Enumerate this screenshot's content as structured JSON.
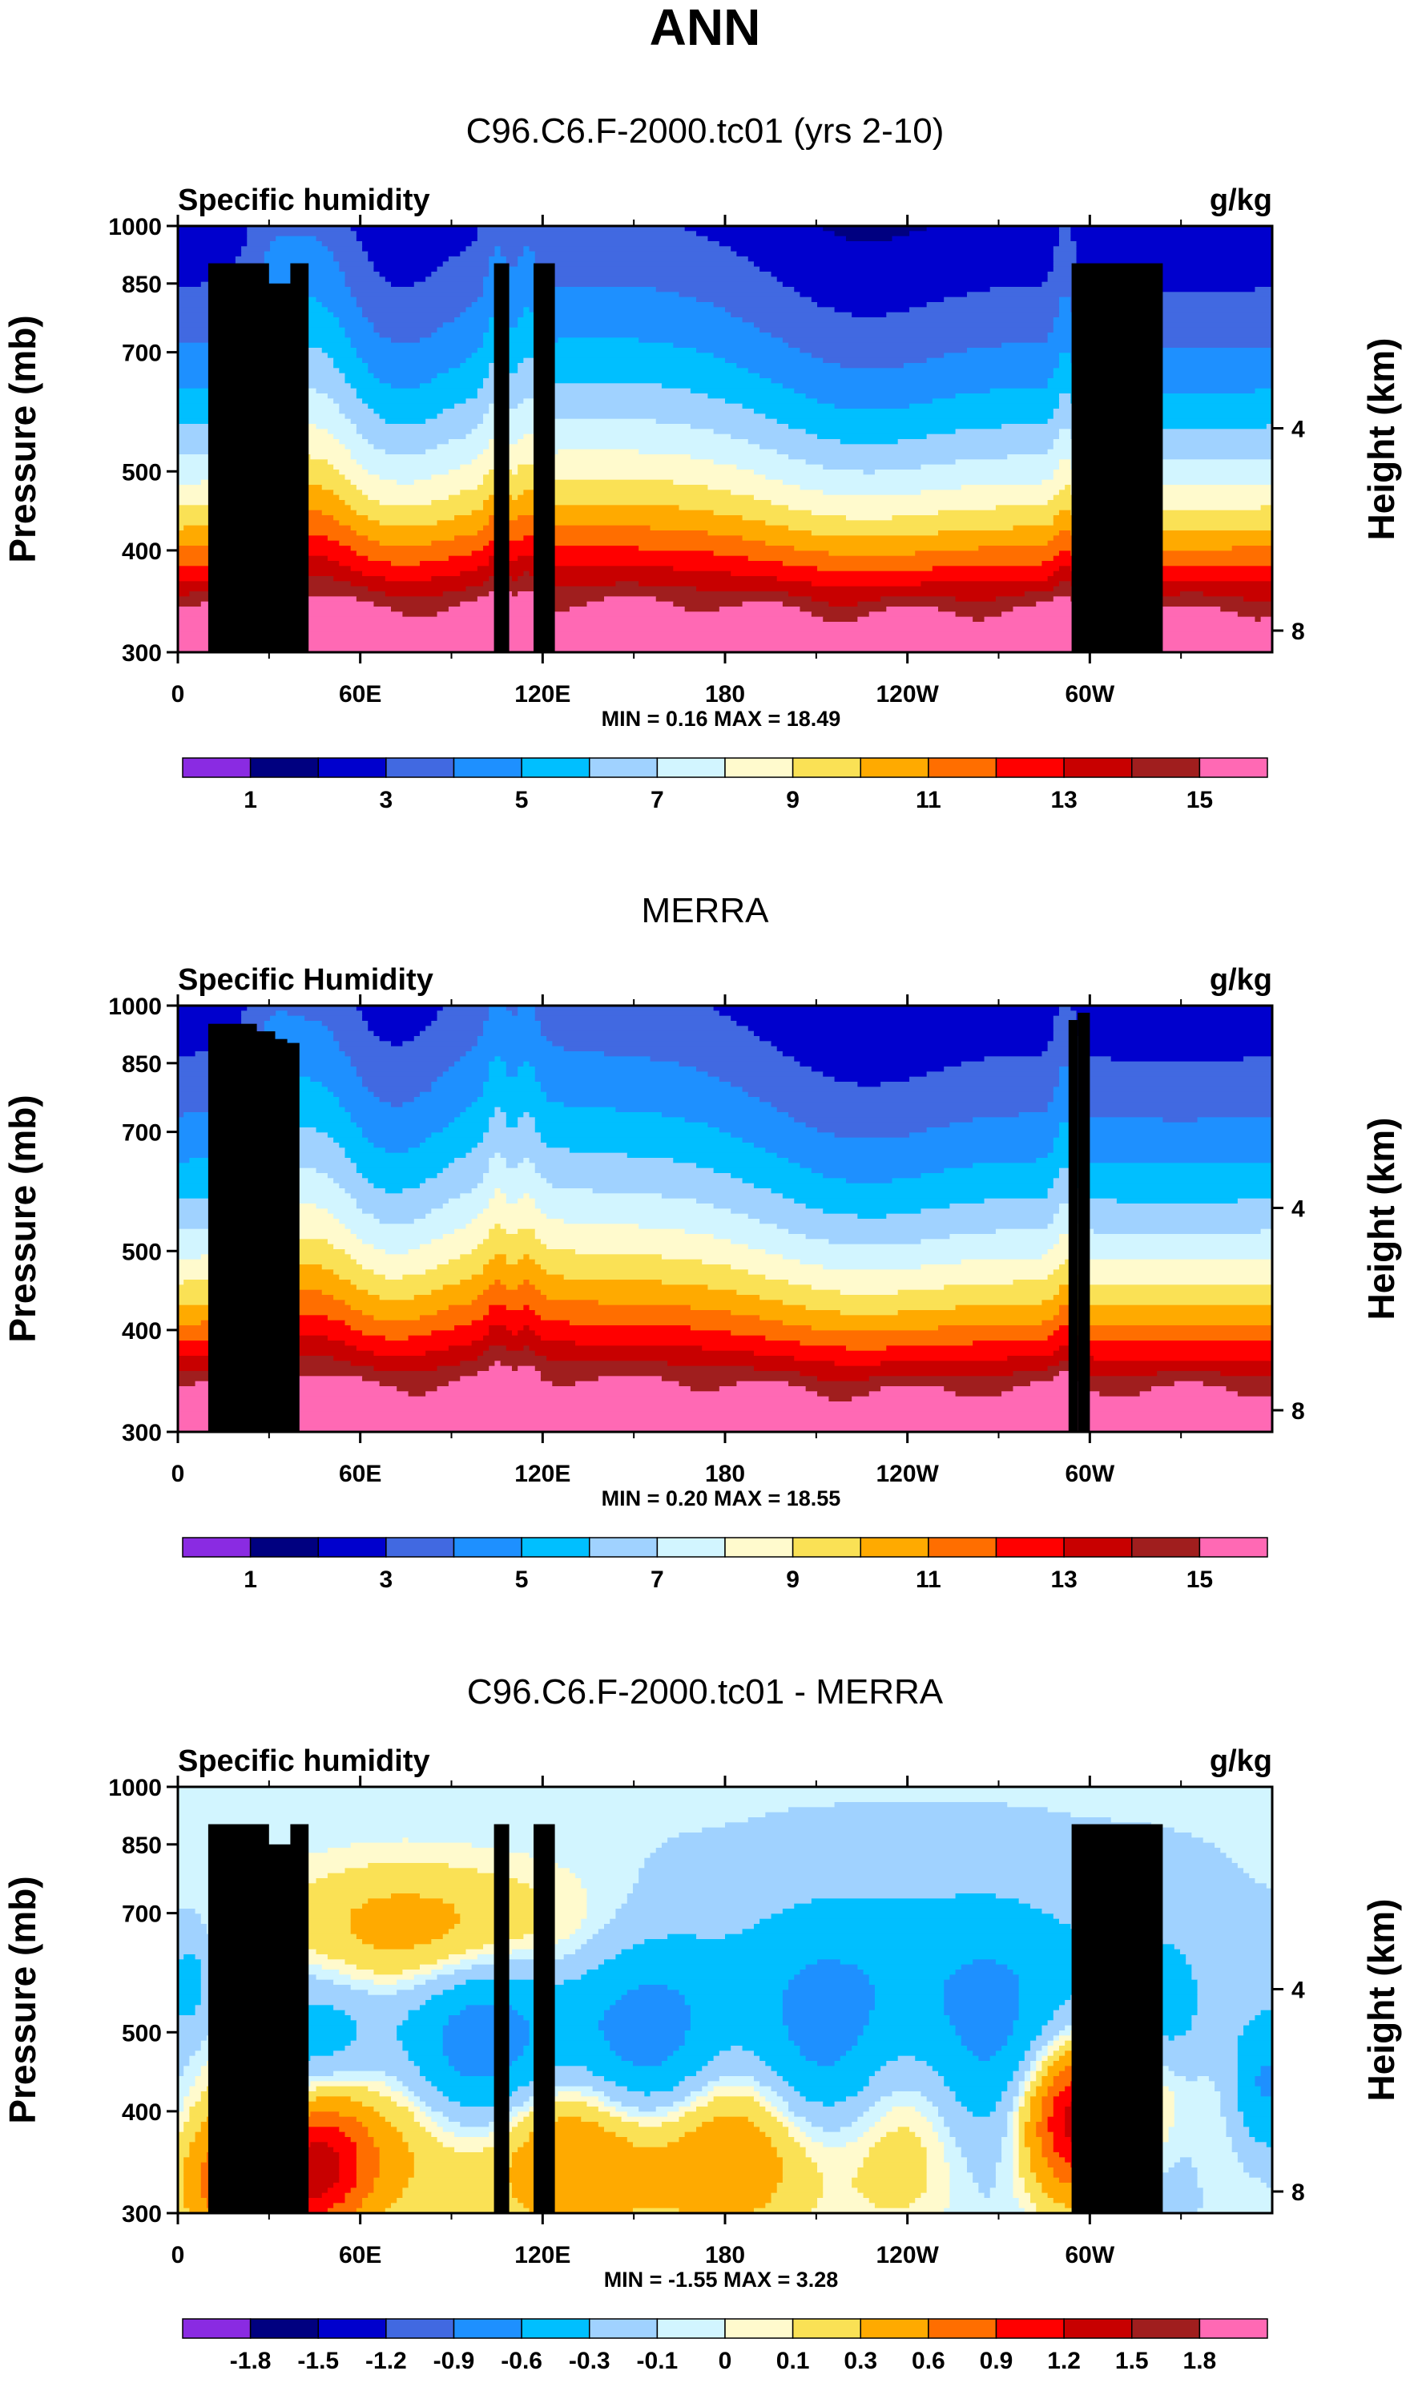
{
  "chart_data": {
    "type": "contour",
    "title": "ANN",
    "colors_16": [
      "#8a2be2",
      "#000080",
      "#0000cd",
      "#4169e1",
      "#1e90ff",
      "#00bfff",
      "#a0d2ff",
      "#d2f5ff",
      "#fffacd",
      "#fae155",
      "#ffaa00",
      "#ff6e00",
      "#ff0000",
      "#c80000",
      "#a01e1e",
      "#ff69b4"
    ],
    "panels": [
      {
        "title": "C96.C6.F-2000.tc01 (yrs 2-10)",
        "left_label": "Specific humidity",
        "right_label": "g/kg",
        "ylabel": "Pressure (mb)",
        "ylabel_right": "Height (km)",
        "yticks": [
          300,
          400,
          500,
          700,
          850,
          1000
        ],
        "yticks_right": [
          8,
          4
        ],
        "xticks": [
          "0",
          "60E",
          "120E",
          "180",
          "120W",
          "60W"
        ],
        "stats": "MIN =   0.16  MAX =  18.49",
        "colorbar_labels": [
          "1",
          "3",
          "5",
          "7",
          "9",
          "11",
          "13",
          "15"
        ],
        "field_type": "clim",
        "variant": "model",
        "mountains": [
          [
            10,
            30,
            900
          ],
          [
            29,
            38,
            850
          ],
          [
            37,
            43,
            900
          ],
          [
            104,
            109,
            900
          ],
          [
            117,
            124,
            900
          ],
          [
            294,
            324,
            900
          ]
        ]
      },
      {
        "title": "MERRA",
        "left_label": "Specific Humidity",
        "right_label": "g/kg",
        "ylabel": "Pressure (mb)",
        "ylabel_right": "Height (km)",
        "yticks": [
          300,
          400,
          500,
          700,
          850,
          1000
        ],
        "yticks_right": [
          8,
          4
        ],
        "xticks": [
          "0",
          "60E",
          "120E",
          "180",
          "120W",
          "60W"
        ],
        "stats": "MIN =   0.20  MAX =  18.55",
        "colorbar_labels": [
          "1",
          "3",
          "5",
          "7",
          "9",
          "11",
          "13",
          "15"
        ],
        "field_type": "clim",
        "variant": "obs",
        "mountains": [
          [
            10,
            26,
            950
          ],
          [
            25,
            32,
            930
          ],
          [
            30,
            36,
            910
          ],
          [
            35,
            40,
            900
          ],
          [
            293,
            296,
            960
          ],
          [
            296,
            300,
            980
          ]
        ]
      },
      {
        "title": "C96.C6.F-2000.tc01 - MERRA",
        "left_label": "Specific humidity",
        "right_label": "g/kg",
        "ylabel": "Pressure (mb)",
        "ylabel_right": "Height (km)",
        "yticks": [
          300,
          400,
          500,
          700,
          850,
          1000
        ],
        "yticks_right": [
          8,
          4
        ],
        "xticks": [
          "0",
          "60E",
          "120E",
          "180",
          "120W",
          "60W"
        ],
        "stats": "MIN =  -1.55  MAX =   3.28",
        "colorbar_labels": [
          "-1.8",
          "-1.5",
          "-1.2",
          "-0.9",
          "-0.6",
          "-0.3",
          "-0.1",
          "0",
          "0.1",
          "0.3",
          "0.6",
          "0.9",
          "1.2",
          "1.5",
          "1.8"
        ],
        "diff_levels": [
          -1.8,
          -1.5,
          -1.2,
          -0.9,
          -0.6,
          -0.3,
          -0.1,
          0,
          0.1,
          0.3,
          0.6,
          0.9,
          1.2,
          1.5,
          1.8
        ],
        "field_type": "diff",
        "variant": "diff",
        "mountains": [
          [
            10,
            30,
            900
          ],
          [
            29,
            38,
            850
          ],
          [
            37,
            43,
            900
          ],
          [
            104,
            109,
            900
          ],
          [
            117,
            124,
            900
          ],
          [
            294,
            324,
            900
          ]
        ]
      }
    ]
  }
}
